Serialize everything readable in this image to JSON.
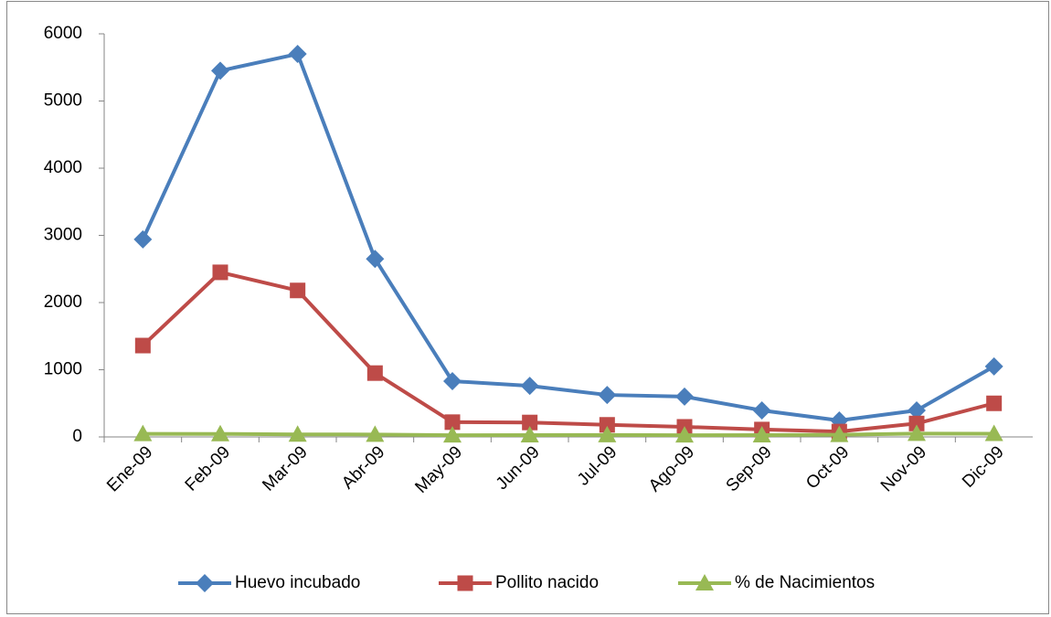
{
  "chart_data": {
    "type": "line",
    "categories": [
      "Ene-09",
      "Feb-09",
      "Mar-09",
      "Abr-09",
      "May-09",
      "Jun-09",
      "Jul-09",
      "Ago-09",
      "Sep-09",
      "Oct-09",
      "Nov-09",
      "Dic-09"
    ],
    "series": [
      {
        "name": "Huevo incubado",
        "color": "#4a7ebb",
        "marker": "diamond",
        "values": [
          2940,
          5450,
          5700,
          2650,
          830,
          760,
          625,
          600,
          395,
          245,
          395,
          1050
        ]
      },
      {
        "name": "Pollito nacido",
        "color": "#be4b48",
        "marker": "square",
        "values": [
          1360,
          2450,
          2180,
          950,
          220,
          215,
          180,
          150,
          110,
          80,
          200,
          500
        ]
      },
      {
        "name": "% de Nacimientos",
        "color": "#98b954",
        "marker": "triangle",
        "values": [
          46,
          45,
          38,
          36,
          26,
          28,
          29,
          25,
          28,
          33,
          50,
          48
        ]
      }
    ],
    "ylim": [
      0,
      6000
    ],
    "yticks": [
      0,
      1000,
      2000,
      3000,
      4000,
      5000,
      6000
    ],
    "grid": false,
    "legend": "bottom"
  }
}
